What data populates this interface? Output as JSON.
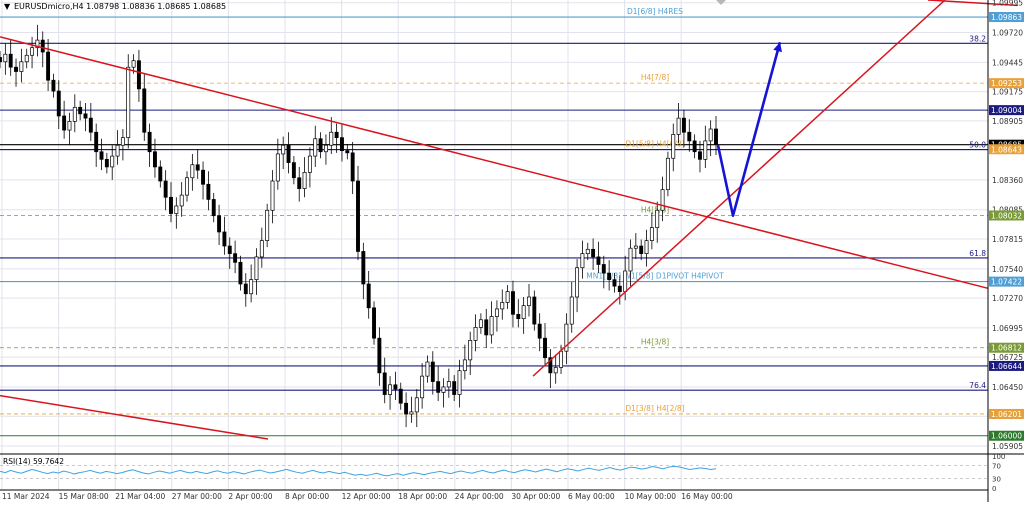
{
  "header": {
    "arrow": "▼",
    "text": "EURUSDmicro,H4  1.08798 1.08836 1.08685 1.08685"
  },
  "colors": {
    "candle": "#000000",
    "trendline": "#d9141e",
    "projection_arrow": "#1414d2",
    "navy_level": "#1c1c80",
    "lightblue_level": "#4f9fd6",
    "orange_level": "#e8a13a",
    "olive_level": "#7a9a36",
    "green_level": "#2d7a2d",
    "rsi_line": "#3ea3df",
    "grid": "#e2e2ec",
    "axis_text": "#333333"
  },
  "chart_data": {
    "type": "candlestick",
    "symbol": "EURUSDmicro",
    "timeframe": "H4",
    "ohlc_header": {
      "open": 1.08798,
      "high": 1.08836,
      "low": 1.08685,
      "close": 1.08685
    },
    "ylim": [
      1.0585,
      1.1002
    ],
    "y_ticks": [
      "1.09995",
      "1.09720",
      "1.09445",
      "1.09175",
      "1.08905",
      "1.08635",
      "1.08360",
      "1.08085",
      "1.07815",
      "1.07540",
      "1.07270",
      "1.06995",
      "1.06725",
      "1.06450",
      "1.06180",
      "1.05905"
    ],
    "x_ticks": [
      "11 Mar 2024",
      "15 Mar 08:00",
      "21 Mar 04:00",
      "27 Mar 00:00",
      "2 Apr 00:00",
      "8 Apr 00:00",
      "12 Apr 00:00",
      "18 Apr 00:00",
      "24 Apr 00:00",
      "30 Apr 00:00",
      "6 May 00:00",
      "10 May 00:00",
      "16 May 00:00"
    ],
    "price_series": [
      1.0945,
      1.0952,
      1.094,
      1.0936,
      1.0945,
      1.0951,
      1.0958,
      1.0965,
      1.0954,
      1.0928,
      1.0918,
      1.0895,
      1.0882,
      1.089,
      1.0903,
      1.0897,
      1.0893,
      1.088,
      1.0862,
      1.0855,
      1.0848,
      1.0858,
      1.0868,
      1.0875,
      1.094,
      1.0946,
      1.092,
      1.088,
      1.0862,
      1.0848,
      1.0835,
      1.082,
      1.0805,
      1.0812,
      1.0822,
      1.0838,
      1.085,
      1.0845,
      1.0832,
      1.0818,
      1.0803,
      1.0788,
      1.0775,
      1.0768,
      1.076,
      1.074,
      1.0731,
      1.0744,
      1.0765,
      1.078,
      1.0808,
      1.0835,
      1.086,
      1.0868,
      1.0852,
      1.0838,
      1.0828,
      1.0843,
      1.0858,
      1.0874,
      1.0862,
      1.0868,
      1.088,
      1.0875,
      1.0863,
      1.0861,
      1.0835,
      1.077,
      1.074,
      1.0718,
      1.069,
      1.0658,
      1.0638,
      1.0647,
      1.0643,
      1.063,
      1.062,
      1.0622,
      1.0635,
      1.0655,
      1.0668,
      1.065,
      1.064,
      1.0645,
      1.065,
      1.0638,
      1.066,
      1.067,
      1.0688,
      1.07,
      1.0707,
      1.0693,
      1.071,
      1.0717,
      1.0723,
      1.0733,
      1.0712,
      1.0708,
      1.072,
      1.0728,
      1.0703,
      1.069,
      1.0672,
      1.0658,
      1.0663,
      1.0678,
      1.0703,
      1.0728,
      1.0755,
      1.0768,
      1.0772,
      1.0765,
      1.0758,
      1.075,
      1.0744,
      1.0738,
      1.0733,
      1.0752,
      1.0773,
      1.0775,
      1.0768,
      1.078,
      1.0792,
      1.0808,
      1.0827,
      1.0856,
      1.0878,
      1.0893,
      1.088,
      1.0872,
      1.0862,
      1.0855,
      1.0872,
      1.0883,
      1.0869
    ],
    "levels": [
      {
        "price": 1.09863,
        "label": "D1[6/8] H4RES",
        "price_label": "1.09863",
        "style": "solid",
        "color_key": "lightblue_level"
      },
      {
        "price": 1.0962,
        "label": "",
        "price_label": "38.2",
        "style": "solid",
        "color_key": "navy_level"
      },
      {
        "price": 1.09253,
        "label": "H4[7/8]",
        "price_label": "1.09253",
        "style": "dash",
        "color_key": "orange_level"
      },
      {
        "price": 1.09004,
        "label": "",
        "price_label": "1.09004",
        "style": "solid",
        "color_key": "navy_level"
      },
      {
        "price": 1.08685,
        "label": "",
        "price_label": "1.08685",
        "style": "solid",
        "color_key": "candle"
      },
      {
        "price": 1.0864,
        "label": "",
        "price_label": "50.0",
        "style": "solid",
        "color_key": "navy_level"
      },
      {
        "price": 1.08643,
        "label": "D1[5/8] H4[6/8]",
        "price_label": "1.08643",
        "style": "none",
        "color_key": "orange_level"
      },
      {
        "price": 1.08032,
        "label": "H4[5/8]",
        "price_label": "1.08032",
        "style": "dash",
        "color_key": "olive_level"
      },
      {
        "price": 1.0764,
        "label": "",
        "price_label": "61.8",
        "style": "solid",
        "color_key": "navy_level"
      },
      {
        "price": 1.07422,
        "label": "MN1[3/8] W1[5/8] D1PIVOT H4PIVOT",
        "price_label": "1.07422",
        "style": "solid",
        "color_key": "lightblue_level"
      },
      {
        "price": 1.06812,
        "label": "H4[3/8]",
        "price_label": "1.06812",
        "style": "dash",
        "color_key": "olive_level"
      },
      {
        "price": 1.06644,
        "label": "",
        "price_label": "1.06644",
        "style": "solid",
        "color_key": "navy_level"
      },
      {
        "price": 1.0642,
        "label": "",
        "price_label": "76.4",
        "style": "solid",
        "color_key": "navy_level"
      },
      {
        "price": 1.06201,
        "label": "D1[3/8] H4[2/8]",
        "price_label": "1.06201",
        "style": "dash",
        "color_key": "orange_level"
      },
      {
        "price": 1.06,
        "label": "",
        "price_label": "1.06000",
        "style": "solid",
        "color_key": "green_level"
      }
    ],
    "trendlines": [
      {
        "name": "upper-descending",
        "from": [
          0,
          1.0968
        ],
        "to": [
          988,
          1.0736
        ]
      },
      {
        "name": "lower-descending",
        "from": [
          0,
          1.0637
        ],
        "to": [
          268,
          1.0597
        ]
      },
      {
        "name": "rising-support",
        "from": [
          533,
          1.0655
        ],
        "to": [
          945,
          1.1002
        ]
      },
      {
        "name": "top-descending",
        "from": [
          928,
          1.1002
        ],
        "to": [
          1018,
          1.0997
        ]
      }
    ],
    "projection": [
      [
        718,
        1.0868
      ],
      [
        733,
        1.0803
      ],
      [
        780,
        1.0963
      ]
    ],
    "rsi": {
      "label": "RSI(14) 59.7642",
      "levels": [
        "100",
        "70",
        "30",
        "0"
      ],
      "series": [
        52,
        48,
        55,
        50,
        46,
        52,
        58,
        54,
        49,
        45,
        50,
        47,
        53,
        49,
        44,
        48,
        51,
        55,
        50,
        46,
        52,
        49,
        45,
        48,
        53,
        57,
        52,
        47,
        44,
        49,
        53,
        50,
        46,
        51,
        55,
        50,
        47,
        52,
        48,
        45,
        50,
        54,
        49,
        46,
        51,
        48,
        44,
        49,
        53,
        56,
        51,
        47,
        50,
        54,
        58,
        53,
        49,
        46,
        51,
        55,
        50,
        47,
        52,
        48,
        45,
        49,
        44,
        40,
        43,
        39,
        42,
        46,
        41,
        38,
        42,
        45,
        40,
        44,
        48,
        45,
        42,
        46,
        49,
        52,
        48,
        45,
        50,
        53,
        49,
        46,
        51,
        55,
        50,
        47,
        52,
        56,
        51,
        48,
        53,
        57,
        54,
        50,
        55,
        59,
        55,
        51,
        56,
        60,
        57,
        53,
        58,
        62,
        58,
        55,
        60,
        64,
        59,
        56,
        61,
        65,
        63,
        59,
        62,
        67,
        64,
        60,
        65,
        68,
        66,
        62,
        58,
        60,
        63,
        61,
        58,
        60
      ]
    }
  }
}
